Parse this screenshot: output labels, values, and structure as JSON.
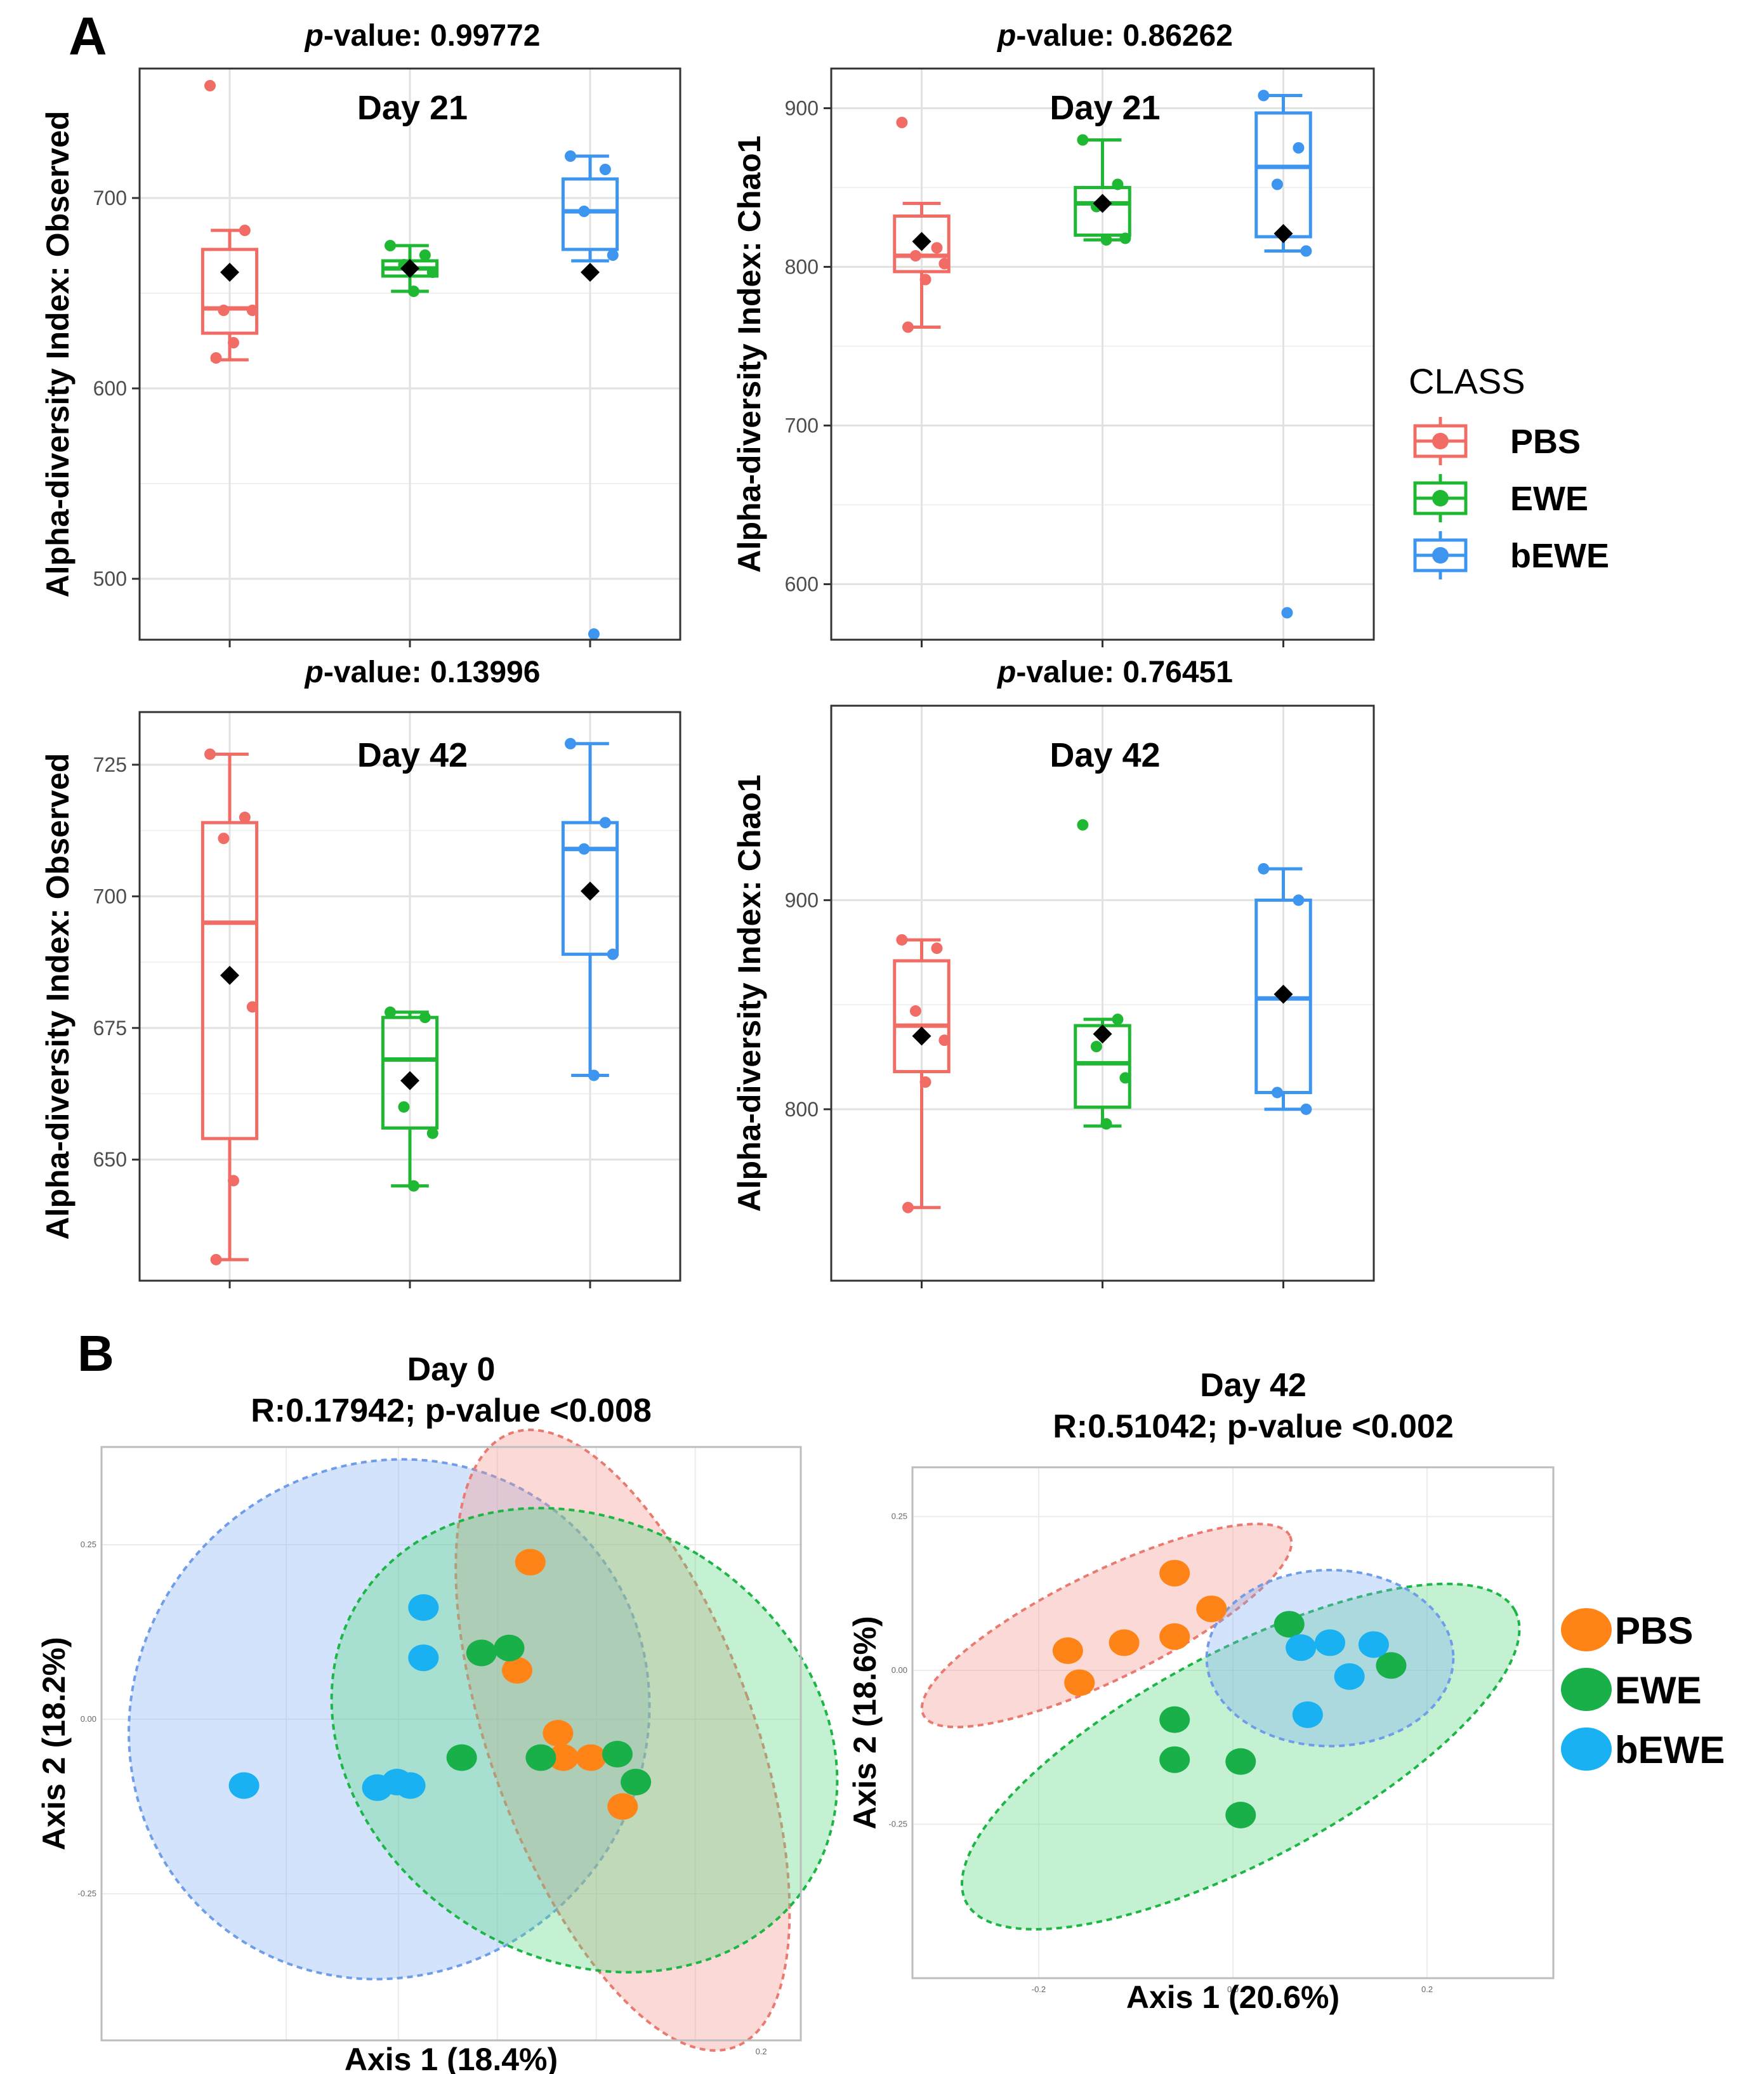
{
  "panel_labels": {
    "a": "A",
    "b": "B"
  },
  "legend_a": {
    "title": "CLASS",
    "items": [
      {
        "label": "PBS",
        "color": "#f06c64"
      },
      {
        "label": "EWE",
        "color": "#1fb832"
      },
      {
        "label": "bEWE",
        "color": "#3d95f0"
      }
    ]
  },
  "legend_b": {
    "items": [
      {
        "label": "PBS",
        "color": "#ff8418"
      },
      {
        "label": "EWE",
        "color": "#19b04a"
      },
      {
        "label": "bEWE",
        "color": "#19b1f2"
      }
    ]
  },
  "chart_data": [
    {
      "type": "box",
      "id": "obs-d21",
      "pvalue_prefix": "p",
      "pvalue_suffix": "-value: 0.99772",
      "title": "Day 21",
      "ylabel": "Alpha-diversity Index: Observed",
      "ylim": [
        468,
        768
      ],
      "yticks": [
        500,
        600,
        700
      ],
      "mean_marker": "black-diamond",
      "groups": [
        {
          "name": "PBS",
          "min": 615,
          "q1": 629,
          "median": 642,
          "q3": 673,
          "max": 683,
          "mean": 661,
          "points": [
            759,
            683,
            641,
            641,
            624,
            616
          ]
        },
        {
          "name": "EWE",
          "min": 651,
          "q1": 659,
          "median": 663,
          "q3": 667,
          "max": 675,
          "mean": 663,
          "points": [
            675,
            670,
            665,
            661,
            651
          ]
        },
        {
          "name": "bEWE",
          "min": 667,
          "q1": 673,
          "median": 693,
          "q3": 710,
          "max": 722,
          "mean": 661,
          "points": [
            722,
            715,
            693,
            670,
            471
          ]
        }
      ]
    },
    {
      "type": "box",
      "id": "chao-d21",
      "pvalue_prefix": "p",
      "pvalue_suffix": "-value: 0.86262",
      "title": "Day 21",
      "ylabel": "Alpha-diversity Index: Chao1",
      "ylim": [
        565,
        925
      ],
      "yticks": [
        600,
        700,
        800,
        900
      ],
      "mean_marker": "black-diamond",
      "groups": [
        {
          "name": "PBS",
          "min": 762,
          "q1": 797,
          "median": 807,
          "q3": 832,
          "max": 840,
          "mean": 816,
          "points": [
            891,
            812,
            807,
            802,
            792,
            762
          ]
        },
        {
          "name": "EWE",
          "min": 817,
          "q1": 820,
          "median": 840,
          "q3": 850,
          "max": 880,
          "mean": 840,
          "points": [
            880,
            852,
            838,
            818,
            817
          ]
        },
        {
          "name": "bEWE",
          "min": 810,
          "q1": 819,
          "median": 863,
          "q3": 897,
          "max": 908,
          "mean": 821,
          "points": [
            908,
            875,
            852,
            810,
            582
          ]
        }
      ]
    },
    {
      "type": "box",
      "id": "obs-d42",
      "pvalue_prefix": "p",
      "pvalue_suffix": "-value: 0.13996",
      "title": "Day 42",
      "ylabel": "Alpha-diversity Index: Observed",
      "ylim": [
        627,
        735
      ],
      "yticks": [
        650,
        675,
        700,
        725
      ],
      "mean_marker": "black-diamond",
      "groups": [
        {
          "name": "PBS",
          "min": 631,
          "q1": 654,
          "median": 695,
          "q3": 714,
          "max": 727,
          "mean": 685,
          "points": [
            727,
            715,
            711,
            679,
            646,
            631
          ]
        },
        {
          "name": "EWE",
          "min": 645,
          "q1": 656,
          "median": 669,
          "q3": 677,
          "max": 678,
          "mean": 665,
          "points": [
            678,
            677,
            660,
            655,
            645
          ]
        },
        {
          "name": "bEWE",
          "min": 666,
          "q1": 689,
          "median": 709,
          "q3": 714,
          "max": 729,
          "mean": 701,
          "points": [
            729,
            714,
            709,
            689,
            666
          ]
        }
      ]
    },
    {
      "type": "box",
      "id": "chao-d42",
      "pvalue_prefix": "p",
      "pvalue_suffix": "-value: 0.76451",
      "title": "Day 42",
      "ylabel": "Alpha-diversity Index: Chao1",
      "ylim": [
        718,
        993
      ],
      "yticks": [
        800,
        900
      ],
      "mean_marker": "black-diamond",
      "groups": [
        {
          "name": "PBS",
          "min": 753,
          "q1": 818,
          "median": 840,
          "q3": 871,
          "max": 881,
          "mean": 835,
          "points": [
            881,
            877,
            847,
            833,
            813,
            753
          ]
        },
        {
          "name": "EWE",
          "min": 792,
          "q1": 801,
          "median": 822,
          "q3": 840,
          "max": 843,
          "mean": 836,
          "points": [
            936,
            843,
            830,
            815,
            793
          ]
        },
        {
          "name": "bEWE",
          "min": 800,
          "q1": 808,
          "median": 853,
          "q3": 900,
          "max": 915,
          "mean": 855,
          "points": [
            915,
            900,
            808,
            800
          ]
        }
      ]
    },
    {
      "type": "scatter",
      "id": "pcoa-d0",
      "title": "Day 0",
      "subtitle": "R:0.17942; p-value <0.008",
      "xlabel": "Axis 1 (18.4%)",
      "ylabel": "Axis 2 (18.2%)",
      "xlim": [
        -0.3,
        0.23
      ],
      "ylim": [
        -0.46,
        0.39
      ],
      "xticks": [
        {
          "v": 0.2,
          "label": "0.2"
        }
      ],
      "yticks": [
        {
          "v": 0.25,
          "label": "0.25"
        },
        {
          "v": 0.0,
          "label": "0.00"
        },
        {
          "v": -0.25,
          "label": "-0.25"
        }
      ],
      "gridlines_x": [
        -0.3,
        -0.16,
        -0.075,
        0.0,
        0.075,
        0.15
      ],
      "ellipses": [
        {
          "group": "bEWE",
          "cx": -0.082,
          "cy": 0.0,
          "rx": 0.192,
          "ry": 0.382,
          "angle_deg": 46
        },
        {
          "group": "PBS",
          "cx": 0.095,
          "cy": -0.03,
          "rx": 0.1,
          "ry": 0.468,
          "angle_deg": -20
        },
        {
          "group": "EWE",
          "cx": 0.066,
          "cy": -0.03,
          "rx": 0.165,
          "ry": 0.38,
          "angle_deg": -58
        }
      ],
      "series": [
        {
          "name": "PBS",
          "points": [
            [
              0.025,
              0.225
            ],
            [
              0.015,
              0.07
            ],
            [
              0.046,
              -0.02
            ],
            [
              0.05,
              -0.055
            ],
            [
              0.071,
              -0.055
            ],
            [
              0.095,
              -0.125
            ]
          ]
        },
        {
          "name": "EWE",
          "points": [
            [
              -0.012,
              0.095
            ],
            [
              0.009,
              0.102
            ],
            [
              -0.027,
              -0.055
            ],
            [
              0.033,
              -0.055
            ],
            [
              0.091,
              -0.05
            ],
            [
              0.105,
              -0.09
            ]
          ]
        },
        {
          "name": "bEWE",
          "points": [
            [
              -0.056,
              0.16
            ],
            [
              -0.056,
              0.088
            ],
            [
              -0.192,
              -0.095
            ],
            [
              -0.066,
              -0.095
            ],
            [
              -0.076,
              -0.09
            ],
            [
              -0.091,
              -0.098
            ]
          ]
        }
      ]
    },
    {
      "type": "scatter",
      "id": "pcoa-d42",
      "title": "Day 42",
      "subtitle": "R:0.51042; p-value <0.002",
      "xlabel": "Axis 1 (20.6%)",
      "ylabel": "Axis 2 (18.6%)",
      "xlim": [
        -0.33,
        0.33
      ],
      "ylim": [
        -0.5,
        0.33
      ],
      "xticks": [
        {
          "v": -0.2,
          "label": "-0.2"
        },
        {
          "v": 0.0,
          "label": "0.0"
        },
        {
          "v": 0.2,
          "label": "0.2"
        }
      ],
      "yticks": [
        {
          "v": 0.25,
          "label": "0.25"
        },
        {
          "v": 0.0,
          "label": "0.00"
        },
        {
          "v": -0.25,
          "label": "-0.25"
        }
      ],
      "gridlines_x": [
        -0.2,
        0.0,
        0.2
      ],
      "ellipses": [
        {
          "group": "PBS",
          "cx": -0.13,
          "cy": 0.073,
          "rx": 0.21,
          "ry": 0.087,
          "angle_deg": -26
        },
        {
          "group": "EWE",
          "cx": 0.008,
          "cy": -0.14,
          "rx": 0.32,
          "ry": 0.17,
          "angle_deg": -28
        },
        {
          "group": "bEWE",
          "cx": 0.1,
          "cy": 0.02,
          "rx": 0.127,
          "ry": 0.143,
          "angle_deg": 0
        }
      ],
      "series": [
        {
          "name": "PBS",
          "points": [
            [
              -0.06,
              0.158
            ],
            [
              -0.022,
              0.1
            ],
            [
              -0.06,
              0.055
            ],
            [
              -0.112,
              0.045
            ],
            [
              -0.17,
              0.032
            ],
            [
              -0.158,
              -0.02
            ]
          ]
        },
        {
          "name": "EWE",
          "points": [
            [
              0.058,
              0.075
            ],
            [
              0.163,
              0.008
            ],
            [
              -0.06,
              -0.08
            ],
            [
              -0.06,
              -0.145
            ],
            [
              0.008,
              -0.148
            ],
            [
              0.008,
              -0.235
            ]
          ]
        },
        {
          "name": "bEWE",
          "points": [
            [
              0.07,
              0.037
            ],
            [
              0.1,
              0.045
            ],
            [
              0.145,
              0.042
            ],
            [
              0.12,
              -0.01
            ],
            [
              0.077,
              -0.072
            ]
          ]
        }
      ]
    }
  ]
}
